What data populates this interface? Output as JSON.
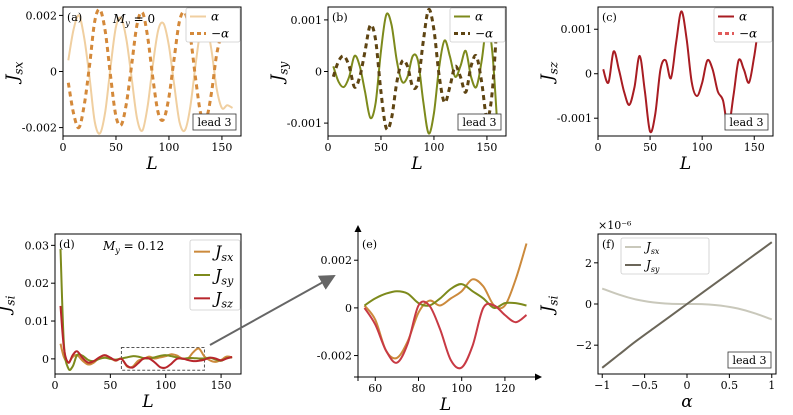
{
  "chart_data": [
    {
      "id": "a",
      "type": "line",
      "panel_label": "(a)",
      "annotation": "M_y = 0",
      "badge": "lead 3",
      "xlabel": "L",
      "ylabel": "J_sx",
      "xlim": [
        0,
        168
      ],
      "ylim": [
        -0.0023,
        0.0023
      ],
      "xticks": [
        0,
        50,
        100,
        150
      ],
      "yticks": [
        -0.002,
        0,
        0.002
      ],
      "ytick_labels": [
        "-0.002",
        "0",
        "0.002"
      ],
      "legend_position": "top-right",
      "series": [
        {
          "name": "α",
          "color": "#f0cfa0",
          "dashed": false,
          "x": [
            5,
            10,
            15,
            20,
            25,
            30,
            35,
            40,
            45,
            50,
            55,
            60,
            65,
            70,
            75,
            80,
            85,
            90,
            95,
            100,
            105,
            110,
            115,
            120,
            125,
            130,
            135,
            140,
            145,
            150,
            155,
            160
          ],
          "y": [
            0.0004,
            0.0015,
            0.002,
            0.0012,
            -0.0002,
            -0.0018,
            -0.0022,
            -0.0014,
            0.0002,
            0.0016,
            0.0019,
            0.0011,
            -0.0003,
            -0.0017,
            -0.0021,
            -0.0012,
            0.0003,
            0.0015,
            0.0017,
            0.0009,
            -0.0005,
            -0.0018,
            -0.0021,
            -0.0013,
            0.0002,
            0.0015,
            0.0017,
            0.0008,
            -0.0006,
            -0.0013,
            -0.0012,
            -0.0013
          ]
        },
        {
          "name": "−α",
          "color": "#d4893a",
          "dashed": true,
          "x": [
            5,
            10,
            15,
            20,
            25,
            30,
            35,
            40,
            45,
            50,
            55,
            60,
            65,
            70,
            75,
            80,
            85,
            90,
            95,
            100,
            105,
            110,
            115,
            120,
            125,
            130,
            135,
            140,
            145,
            150,
            155,
            160
          ],
          "y": [
            -0.0004,
            -0.0015,
            -0.002,
            -0.0012,
            0.0002,
            0.0018,
            0.0022,
            0.0014,
            -0.0002,
            -0.0016,
            -0.0019,
            -0.0011,
            0.0003,
            0.0017,
            0.0021,
            0.0012,
            -0.0003,
            -0.0015,
            -0.0017,
            -0.0009,
            0.0005,
            0.0018,
            0.0021,
            0.0013,
            -0.0002,
            -0.0015,
            -0.0017,
            -0.0008,
            0.0006,
            0.0013,
            0.0012,
            0.0013
          ]
        }
      ]
    },
    {
      "id": "b",
      "type": "line",
      "panel_label": "(b)",
      "badge": "lead 3",
      "xlabel": "L",
      "ylabel": "J_sy",
      "xlim": [
        0,
        168
      ],
      "ylim": [
        -0.00125,
        0.00125
      ],
      "xticks": [
        0,
        50,
        100,
        150
      ],
      "yticks": [
        -0.001,
        0,
        0.001
      ],
      "ytick_labels": [
        "-0.001",
        "0",
        "0.001"
      ],
      "legend_position": "top-right",
      "series": [
        {
          "name": "α",
          "color": "#7d8a1c",
          "dashed": false,
          "x": [
            5,
            10,
            15,
            20,
            25,
            30,
            35,
            40,
            45,
            50,
            55,
            60,
            65,
            70,
            75,
            80,
            85,
            90,
            95,
            100,
            105,
            110,
            115,
            120,
            125,
            130,
            135,
            140,
            145,
            150,
            155,
            160
          ],
          "y": [
            0.0001,
            -0.0002,
            -0.0003,
            -0.0001,
            0.0003,
            0.0001,
            -0.0004,
            -0.0009,
            -0.0006,
            0.0004,
            0.0011,
            0.0009,
            0.0002,
            -0.0002,
            -0.0001,
            0.0003,
            0.0002,
            -0.0006,
            -0.0012,
            -0.0008,
            0.0001,
            0.0006,
            0.0003,
            -0.0001,
            0.0001,
            0.0004,
            -0.0001,
            -0.0003,
            0.0002,
            0.0009,
            0.0004,
            -0.0011
          ]
        },
        {
          "name": "−α",
          "color": "#5e4412",
          "dashed": true,
          "x": [
            5,
            10,
            15,
            20,
            25,
            30,
            35,
            40,
            45,
            50,
            55,
            60,
            65,
            70,
            75,
            80,
            85,
            90,
            95,
            100,
            105,
            110,
            115,
            120,
            125,
            130,
            135,
            140,
            145,
            150,
            155,
            160
          ],
          "y": [
            -0.0001,
            0.0002,
            0.0003,
            0.0001,
            -0.0003,
            -0.0001,
            0.0004,
            0.0009,
            0.0006,
            -0.0004,
            -0.0011,
            -0.0009,
            -0.0002,
            0.0002,
            0.0001,
            -0.0003,
            -0.0002,
            0.0006,
            0.0012,
            0.0008,
            -0.0001,
            -0.0006,
            -0.0003,
            0.0001,
            -0.0001,
            -0.0004,
            0.0001,
            0.0003,
            -0.0002,
            -0.0009,
            -0.0004,
            0.0011
          ]
        }
      ]
    },
    {
      "id": "c",
      "type": "line",
      "panel_label": "(c)",
      "badge": "lead 3",
      "xlabel": "L",
      "ylabel": "J_sz",
      "xlim": [
        0,
        168
      ],
      "ylim": [
        -0.0014,
        0.0015
      ],
      "xticks": [
        0,
        50,
        100,
        150
      ],
      "yticks": [
        -0.001,
        0,
        0.001
      ],
      "ytick_labels": [
        "-0.001",
        "0",
        "0.001"
      ],
      "legend_position": "top-right",
      "series": [
        {
          "name": "α",
          "color": "#a81c22",
          "dashed": false,
          "x": [
            5,
            10,
            15,
            20,
            25,
            30,
            35,
            40,
            45,
            50,
            55,
            60,
            65,
            70,
            75,
            80,
            85,
            90,
            95,
            100,
            105,
            110,
            115,
            120,
            125,
            130,
            135,
            140,
            145,
            150,
            155,
            160
          ],
          "y": [
            0.0001,
            -0.0002,
            0.0005,
            0.0001,
            -0.0004,
            -0.0007,
            -0.0003,
            0.0004,
            -0.0004,
            -0.0013,
            -0.0009,
            0.0001,
            0.0003,
            -0.0001,
            0.0007,
            0.0014,
            0.0008,
            -0.0002,
            -0.0005,
            -0.0002,
            0.0003,
            0.0001,
            -0.0004,
            -0.0006,
            -0.0012,
            -0.0005,
            0.0003,
            0.0001,
            -0.0002,
            0.0004,
            0.0011,
            0.0009
          ]
        },
        {
          "name": "−α",
          "color": "#e05a5a",
          "dashed": true,
          "x": [],
          "y": []
        }
      ]
    },
    {
      "id": "d",
      "type": "line",
      "panel_label": "(d)",
      "annotation": "M_y = 0.12",
      "xlabel": "L",
      "ylabel": "J_si",
      "xlim": [
        0,
        168
      ],
      "ylim": [
        -0.004,
        0.033
      ],
      "xticks": [
        0,
        50,
        100,
        150
      ],
      "yticks": [
        0,
        0.01,
        0.02,
        0.03
      ],
      "ytick_labels": [
        "0",
        "0.01",
        "0.02",
        "0.03"
      ],
      "legend_position": "top-right",
      "inset_box_x": [
        60,
        135
      ],
      "series": [
        {
          "name": "J_sx",
          "color": "#cc8a3c",
          "x": [
            5,
            8,
            12,
            16,
            20,
            25,
            30,
            35,
            40,
            45,
            50,
            55,
            60,
            65,
            70,
            75,
            80,
            85,
            90,
            95,
            100,
            105,
            110,
            115,
            120,
            125,
            130,
            135,
            140,
            145,
            150,
            155,
            160
          ],
          "y": [
            0.004,
            0.0005,
            -0.001,
            0.0005,
            0.001,
            -0.0005,
            -0.0015,
            -0.001,
            0.0003,
            0.0009,
            0.0002,
            -0.0005,
            0.0001,
            -0.002,
            -0.0021,
            -0.0005,
            0,
            0.0006,
            0.0001,
            0.0004,
            0.0007,
            0.0012,
            0.0009,
            0.0001,
            0.0001,
            0.0018,
            0.0027,
            0.0006,
            -0.0004,
            -0.0008,
            -0.0003,
            0.0006,
            0.0004
          ]
        },
        {
          "name": "J_sy",
          "color": "#7d8a1c",
          "x": [
            5,
            8,
            12,
            16,
            20,
            25,
            30,
            35,
            40,
            45,
            50,
            55,
            60,
            65,
            70,
            75,
            80,
            85,
            90,
            95,
            100,
            105,
            110,
            115,
            120,
            125,
            130,
            135,
            140,
            145,
            150,
            155,
            160
          ],
          "y": [
            0.029,
            0.004,
            -0.0025,
            -0.002,
            0.001,
            0.0008,
            -0.0003,
            -0.0006,
            0,
            0.0003,
            0,
            -0.0002,
            0.0001,
            0.0004,
            0.0007,
            0.0006,
            0.0002,
            0.0001,
            0.0004,
            0.0008,
            0.001,
            0.0007,
            0.0004,
            0,
            0.0002,
            0.0002,
            0.0001,
            0.0001,
            0.0003,
            -0.0002,
            -0.0005,
            0.0002,
            0.0004
          ]
        },
        {
          "name": "J_sz",
          "color": "#b8262c",
          "x": [
            5,
            8,
            12,
            16,
            20,
            25,
            30,
            35,
            40,
            45,
            50,
            55,
            60,
            65,
            70,
            75,
            80,
            85,
            90,
            95,
            100,
            105,
            110,
            115,
            120,
            125,
            130,
            135,
            140,
            145,
            150,
            155,
            160
          ],
          "y": [
            0.014,
            0.003,
            -0.001,
            0.001,
            0.002,
            0.0002,
            -0.001,
            -0.0006,
            0.0004,
            0.001,
            0.0003,
            -0.0004,
            0,
            -0.0018,
            -0.0023,
            -0.0012,
            0.0001,
            0.0001,
            -0.0009,
            -0.0022,
            -0.0023,
            -0.0013,
            0,
            0.0001,
            -0.0003,
            -0.0006,
            -0.0005,
            -0.0002,
            0.0003,
            0.0001,
            -0.0004,
            0.0001,
            0.0005
          ]
        }
      ]
    },
    {
      "id": "e",
      "type": "line",
      "panel_label": "(e)",
      "xlabel": "L",
      "xlim": [
        52,
        133
      ],
      "ylim": [
        -0.0029,
        0.0031
      ],
      "xticks": [
        60,
        80,
        100,
        120
      ],
      "yticks": [
        -0.002,
        0,
        0.002
      ],
      "ytick_labels": [
        "-0.002",
        "0",
        "0.002"
      ],
      "series": [
        {
          "name": "J_sx",
          "color": "#cc8a3c",
          "x": [
            55,
            60,
            65,
            70,
            75,
            80,
            85,
            90,
            95,
            100,
            105,
            110,
            115,
            120,
            125,
            130
          ],
          "y": [
            0.0001,
            -0.0005,
            -0.0018,
            -0.0021,
            -0.0014,
            -0.0002,
            0.0003,
            0.0001,
            0.0004,
            0.0007,
            0.0012,
            0.0009,
            0.0001,
            0.0001,
            0.0012,
            0.0027
          ]
        },
        {
          "name": "J_sy",
          "color": "#7d8a1c",
          "x": [
            55,
            60,
            65,
            70,
            75,
            80,
            85,
            90,
            95,
            100,
            105,
            110,
            115,
            120,
            125,
            130
          ],
          "y": [
            0.0001,
            0.0004,
            0.0006,
            0.0007,
            0.0006,
            0.0002,
            0.0001,
            0.0004,
            0.0008,
            0.001,
            0.0007,
            0.0004,
            0,
            0.0002,
            0.0002,
            0.0001
          ]
        },
        {
          "name": "J_sz",
          "color": "#c83a44",
          "x": [
            55,
            60,
            65,
            70,
            75,
            80,
            85,
            90,
            95,
            100,
            105,
            110,
            115,
            120,
            125,
            130
          ],
          "y": [
            0,
            -0.0007,
            -0.0018,
            -0.0023,
            -0.0015,
            0.0001,
            0.0001,
            -0.0009,
            -0.0022,
            -0.0025,
            -0.0016,
            0,
            0.0001,
            -0.0003,
            -0.0006,
            -0.0003
          ]
        }
      ]
    },
    {
      "id": "f",
      "type": "line",
      "panel_label": "(f)",
      "badge": "lead 3",
      "offset_label": "×10⁻⁶",
      "xlabel": "α",
      "ylabel": "J_si",
      "xlim": [
        -1.05,
        1.05
      ],
      "ylim": [
        -3.4,
        3.4
      ],
      "xticks": [
        -1,
        -0.5,
        0,
        0.5,
        1
      ],
      "xtick_labels": [
        "−1",
        "−0.5",
        "0",
        "0.5",
        "1"
      ],
      "yticks": [
        -2,
        0,
        2
      ],
      "ytick_labels": [
        "−2",
        "0",
        "2"
      ],
      "legend_position": "top-left",
      "series": [
        {
          "name": "J_sx",
          "color": "#c9c8bb",
          "x": [
            -1,
            -0.8,
            -0.6,
            -0.4,
            -0.2,
            0,
            0.2,
            0.4,
            0.6,
            0.8,
            1
          ],
          "y": [
            0.75,
            0.45,
            0.22,
            0.08,
            0.01,
            0,
            -0.01,
            -0.08,
            -0.22,
            -0.45,
            -0.75
          ]
        },
        {
          "name": "J_sy",
          "color": "#6b6659",
          "x": [
            -1,
            -0.8,
            -0.6,
            -0.4,
            -0.2,
            0,
            0.2,
            0.4,
            0.6,
            0.8,
            1
          ],
          "y": [
            -3.1,
            -2.45,
            -1.8,
            -1.2,
            -0.6,
            0,
            0.6,
            1.2,
            1.8,
            2.4,
            3.0
          ]
        }
      ]
    }
  ]
}
